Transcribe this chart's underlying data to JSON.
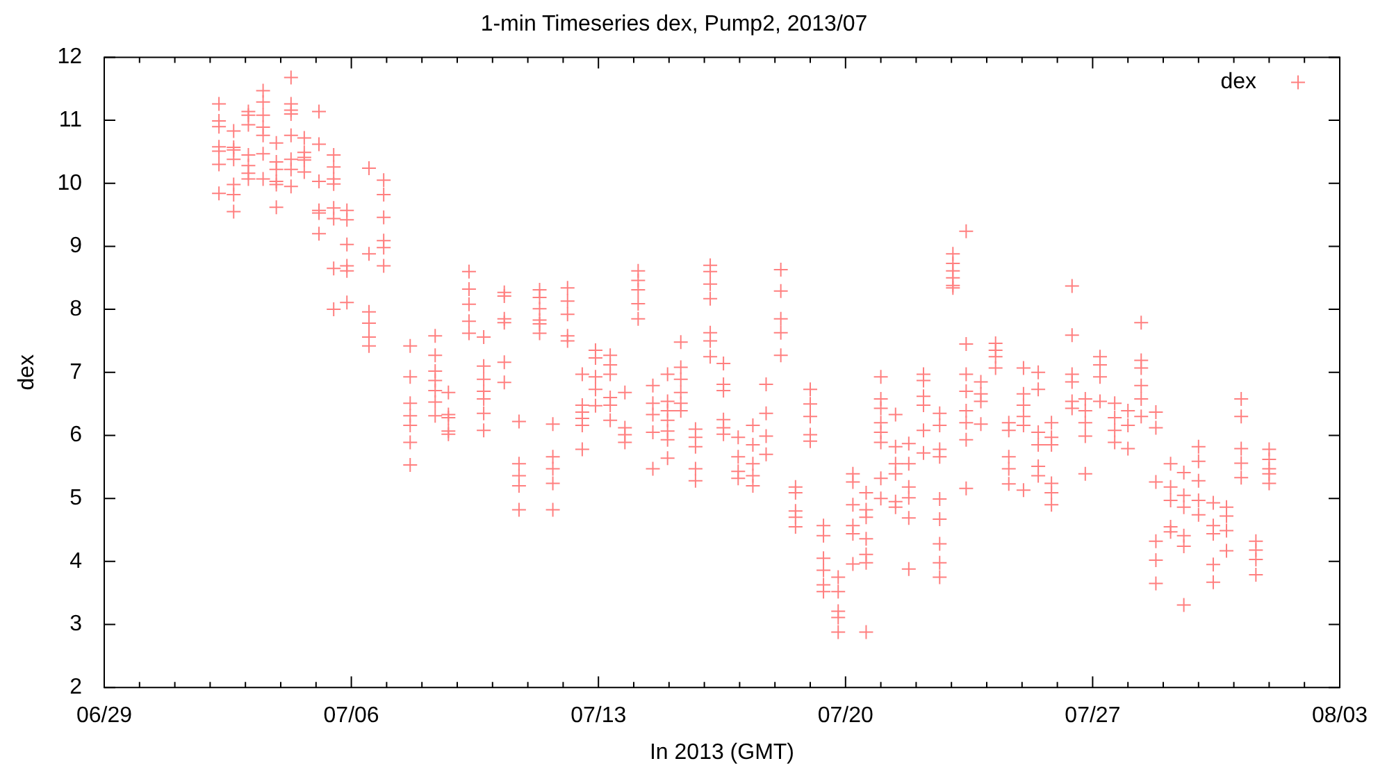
{
  "chart_data": {
    "type": "scatter",
    "title": "1-min Timeseries dex, Pump2, 2013/07",
    "xlabel": "In 2013 (GMT)",
    "ylabel": "dex",
    "xlim": [
      "2013-06-29",
      "2013-08-03"
    ],
    "xticks": [
      {
        "value": "2013-06-29",
        "label": "06/29"
      },
      {
        "value": "2013-06-30",
        "label": null
      },
      {
        "value": "2013-07-01",
        "label": null
      },
      {
        "value": "2013-07-02",
        "label": null
      },
      {
        "value": "2013-07-03",
        "label": null
      },
      {
        "value": "2013-07-04",
        "label": null
      },
      {
        "value": "2013-07-05",
        "label": null
      },
      {
        "value": "2013-07-06",
        "label": "07/06"
      },
      {
        "value": "2013-07-07",
        "label": null
      },
      {
        "value": "2013-07-08",
        "label": null
      },
      {
        "value": "2013-07-09",
        "label": null
      },
      {
        "value": "2013-07-10",
        "label": null
      },
      {
        "value": "2013-07-11",
        "label": null
      },
      {
        "value": "2013-07-12",
        "label": null
      },
      {
        "value": "2013-07-13",
        "label": "07/13"
      },
      {
        "value": "2013-07-14",
        "label": null
      },
      {
        "value": "2013-07-15",
        "label": null
      },
      {
        "value": "2013-07-16",
        "label": null
      },
      {
        "value": "2013-07-17",
        "label": null
      },
      {
        "value": "2013-07-18",
        "label": null
      },
      {
        "value": "2013-07-19",
        "label": null
      },
      {
        "value": "2013-07-20",
        "label": "07/20"
      },
      {
        "value": "2013-07-21",
        "label": null
      },
      {
        "value": "2013-07-22",
        "label": null
      },
      {
        "value": "2013-07-23",
        "label": null
      },
      {
        "value": "2013-07-24",
        "label": null
      },
      {
        "value": "2013-07-25",
        "label": null
      },
      {
        "value": "2013-07-26",
        "label": null
      },
      {
        "value": "2013-07-27",
        "label": "07/27"
      },
      {
        "value": "2013-07-28",
        "label": null
      },
      {
        "value": "2013-07-29",
        "label": null
      },
      {
        "value": "2013-07-30",
        "label": null
      },
      {
        "value": "2013-07-31",
        "label": null
      },
      {
        "value": "2013-08-01",
        "label": null
      },
      {
        "value": "2013-08-02",
        "label": null
      },
      {
        "value": "2013-08-03",
        "label": "08/03"
      }
    ],
    "ylim": [
      2,
      12
    ],
    "yticks": [
      2,
      3,
      4,
      5,
      6,
      7,
      8,
      9,
      10,
      11,
      12
    ],
    "legend": "top right",
    "marker": "cross",
    "series": [
      {
        "name": "dex",
        "color": "#ff7f7f",
        "x": [
          "2013-07-02T06:00",
          "2013-07-02T06:00",
          "2013-07-02T06:00",
          "2013-07-02T06:00",
          "2013-07-02T06:00",
          "2013-07-02T06:00",
          "2013-07-02T06:00",
          "2013-07-02T16:00",
          "2013-07-02T16:00",
          "2013-07-02T16:00",
          "2013-07-02T16:00",
          "2013-07-02T16:00",
          "2013-07-02T16:00",
          "2013-07-02T16:00",
          "2013-07-03T02:00",
          "2013-07-03T02:00",
          "2013-07-03T02:00",
          "2013-07-03T02:00",
          "2013-07-03T02:00",
          "2013-07-03T02:00",
          "2013-07-03T02:00",
          "2013-07-03T12:00",
          "2013-07-03T12:00",
          "2013-07-03T12:00",
          "2013-07-03T12:00",
          "2013-07-03T12:00",
          "2013-07-03T12:00",
          "2013-07-03T12:00",
          "2013-07-03T21:00",
          "2013-07-03T21:00",
          "2013-07-03T21:00",
          "2013-07-03T21:00",
          "2013-07-03T21:00",
          "2013-07-03T21:00",
          "2013-07-04T07:00",
          "2013-07-04T07:00",
          "2013-07-04T07:00",
          "2013-07-04T07:00",
          "2013-07-04T07:00",
          "2013-07-04T07:00",
          "2013-07-04T07:00",
          "2013-07-04T07:00",
          "2013-07-04T16:00",
          "2013-07-04T16:00",
          "2013-07-04T16:00",
          "2013-07-04T16:00",
          "2013-07-04T16:00",
          "2013-07-05T02:00",
          "2013-07-05T02:00",
          "2013-07-05T02:00",
          "2013-07-05T02:00",
          "2013-07-05T02:00",
          "2013-07-05T02:00",
          "2013-07-05T12:00",
          "2013-07-05T12:00",
          "2013-07-05T12:00",
          "2013-07-05T12:00",
          "2013-07-05T12:00",
          "2013-07-05T12:00",
          "2013-07-05T12:00",
          "2013-07-05T12:00",
          "2013-07-05T21:00",
          "2013-07-05T21:00",
          "2013-07-05T21:00",
          "2013-07-05T21:00",
          "2013-07-05T21:00",
          "2013-07-05T21:00",
          "2013-07-06T12:00",
          "2013-07-06T12:00",
          "2013-07-06T12:00",
          "2013-07-06T12:00",
          "2013-07-06T12:00",
          "2013-07-06T12:00",
          "2013-07-06T22:00",
          "2013-07-06T22:00",
          "2013-07-06T22:00",
          "2013-07-06T22:00",
          "2013-07-06T22:00",
          "2013-07-06T22:00",
          "2013-07-07T16:00",
          "2013-07-07T16:00",
          "2013-07-07T16:00",
          "2013-07-07T16:00",
          "2013-07-07T16:00",
          "2013-07-07T16:00",
          "2013-07-07T16:00",
          "2013-07-08T09:00",
          "2013-07-08T09:00",
          "2013-07-08T09:00",
          "2013-07-08T09:00",
          "2013-07-08T09:00",
          "2013-07-08T09:00",
          "2013-07-08T09:00",
          "2013-07-08T18:00",
          "2013-07-08T18:00",
          "2013-07-08T18:00",
          "2013-07-08T18:00",
          "2013-07-08T18:00",
          "2013-07-09T08:00",
          "2013-07-09T08:00",
          "2013-07-09T08:00",
          "2013-07-09T08:00",
          "2013-07-09T08:00",
          "2013-07-09T18:00",
          "2013-07-09T18:00",
          "2013-07-09T18:00",
          "2013-07-09T18:00",
          "2013-07-09T18:00",
          "2013-07-09T18:00",
          "2013-07-09T18:00",
          "2013-07-10T08:00",
          "2013-07-10T08:00",
          "2013-07-10T08:00",
          "2013-07-10T08:00",
          "2013-07-10T08:00",
          "2013-07-10T08:00",
          "2013-07-10T18:00",
          "2013-07-10T18:00",
          "2013-07-10T18:00",
          "2013-07-10T18:00",
          "2013-07-10T18:00",
          "2013-07-11T08:00",
          "2013-07-11T08:00",
          "2013-07-11T08:00",
          "2013-07-11T08:00",
          "2013-07-11T08:00",
          "2013-07-11T08:00",
          "2013-07-11T17:00",
          "2013-07-11T17:00",
          "2013-07-11T17:00",
          "2013-07-11T17:00",
          "2013-07-11T17:00",
          "2013-07-12T03:00",
          "2013-07-12T03:00",
          "2013-07-12T03:00",
          "2013-07-12T03:00",
          "2013-07-12T03:00",
          "2013-07-12T13:00",
          "2013-07-12T13:00",
          "2013-07-12T13:00",
          "2013-07-12T13:00",
          "2013-07-12T13:00",
          "2013-07-12T13:00",
          "2013-07-12T22:00",
          "2013-07-12T22:00",
          "2013-07-12T22:00",
          "2013-07-12T22:00",
          "2013-07-12T22:00",
          "2013-07-13T08:00",
          "2013-07-13T08:00",
          "2013-07-13T08:00",
          "2013-07-13T08:00",
          "2013-07-13T08:00",
          "2013-07-13T08:00",
          "2013-07-13T18:00",
          "2013-07-13T18:00",
          "2013-07-13T18:00",
          "2013-07-13T18:00",
          "2013-07-14T03:00",
          "2013-07-14T03:00",
          "2013-07-14T03:00",
          "2013-07-14T03:00",
          "2013-07-14T03:00",
          "2013-07-14T13:00",
          "2013-07-14T13:00",
          "2013-07-14T13:00",
          "2013-07-14T13:00",
          "2013-07-14T13:00",
          "2013-07-14T23:00",
          "2013-07-14T23:00",
          "2013-07-14T23:00",
          "2013-07-14T23:00",
          "2013-07-14T23:00",
          "2013-07-14T23:00",
          "2013-07-14T23:00",
          "2013-07-15T08:00",
          "2013-07-15T08:00",
          "2013-07-15T08:00",
          "2013-07-15T08:00",
          "2013-07-15T08:00",
          "2013-07-15T08:00",
          "2013-07-15T18:00",
          "2013-07-15T18:00",
          "2013-07-15T18:00",
          "2013-07-15T18:00",
          "2013-07-15T18:00",
          "2013-07-16T04:00",
          "2013-07-16T04:00",
          "2013-07-16T04:00",
          "2013-07-16T04:00",
          "2013-07-16T04:00",
          "2013-07-16T04:00",
          "2013-07-16T04:00",
          "2013-07-16T13:00",
          "2013-07-16T13:00",
          "2013-07-16T13:00",
          "2013-07-16T13:00",
          "2013-07-16T13:00",
          "2013-07-16T13:00",
          "2013-07-16T23:00",
          "2013-07-16T23:00",
          "2013-07-16T23:00",
          "2013-07-16T23:00",
          "2013-07-17T09:00",
          "2013-07-17T09:00",
          "2013-07-17T09:00",
          "2013-07-17T09:00",
          "2013-07-17T09:00",
          "2013-07-17T18:00",
          "2013-07-17T18:00",
          "2013-07-17T18:00",
          "2013-07-17T18:00",
          "2013-07-18T04:00",
          "2013-07-18T04:00",
          "2013-07-18T04:00",
          "2013-07-18T04:00",
          "2013-07-18T04:00",
          "2013-07-18T14:00",
          "2013-07-18T14:00",
          "2013-07-18T14:00",
          "2013-07-18T14:00",
          "2013-07-18T14:00",
          "2013-07-19T00:00",
          "2013-07-19T00:00",
          "2013-07-19T00:00",
          "2013-07-19T00:00",
          "2013-07-19T00:00",
          "2013-07-19T09:00",
          "2013-07-19T09:00",
          "2013-07-19T09:00",
          "2013-07-19T09:00",
          "2013-07-19T09:00",
          "2013-07-19T09:00",
          "2013-07-19T19:00",
          "2013-07-19T19:00",
          "2013-07-19T19:00",
          "2013-07-19T19:00",
          "2013-07-19T19:00",
          "2013-07-20T05:00",
          "2013-07-20T05:00",
          "2013-07-20T05:00",
          "2013-07-20T05:00",
          "2013-07-20T05:00",
          "2013-07-20T05:00",
          "2013-07-20T14:00",
          "2013-07-20T14:00",
          "2013-07-20T14:00",
          "2013-07-20T14:00",
          "2013-07-20T14:00",
          "2013-07-20T14:00",
          "2013-07-20T14:00",
          "2013-07-21T00:00",
          "2013-07-21T00:00",
          "2013-07-21T00:00",
          "2013-07-21T00:00",
          "2013-07-21T00:00",
          "2013-07-21T00:00",
          "2013-07-21T00:00",
          "2013-07-21T00:00",
          "2013-07-21T10:00",
          "2013-07-21T10:00",
          "2013-07-21T10:00",
          "2013-07-21T10:00",
          "2013-07-21T10:00",
          "2013-07-21T10:00",
          "2013-07-21T19:00",
          "2013-07-21T19:00",
          "2013-07-21T19:00",
          "2013-07-21T19:00",
          "2013-07-21T19:00",
          "2013-07-21T19:00",
          "2013-07-22T05:00",
          "2013-07-22T05:00",
          "2013-07-22T05:00",
          "2013-07-22T05:00",
          "2013-07-22T05:00",
          "2013-07-22T05:00",
          "2013-07-22T16:00",
          "2013-07-22T16:00",
          "2013-07-22T16:00",
          "2013-07-22T16:00",
          "2013-07-22T16:00",
          "2013-07-22T16:00",
          "2013-07-22T16:00",
          "2013-07-22T16:00",
          "2013-07-22T16:00",
          "2013-07-23T01:00",
          "2013-07-23T01:00",
          "2013-07-23T01:00",
          "2013-07-23T01:00",
          "2013-07-23T01:00",
          "2013-07-23T01:00",
          "2013-07-23T10:00",
          "2013-07-23T10:00",
          "2013-07-23T10:00",
          "2013-07-23T10:00",
          "2013-07-23T10:00",
          "2013-07-23T10:00",
          "2013-07-23T10:00",
          "2013-07-23T10:00",
          "2013-07-23T20:00",
          "2013-07-23T20:00",
          "2013-07-23T20:00",
          "2013-07-23T20:00",
          "2013-07-24T06:00",
          "2013-07-24T06:00",
          "2013-07-24T06:00",
          "2013-07-24T06:00",
          "2013-07-24T15:00",
          "2013-07-24T15:00",
          "2013-07-24T15:00",
          "2013-07-24T15:00",
          "2013-07-24T15:00",
          "2013-07-25T01:00",
          "2013-07-25T01:00",
          "2013-07-25T01:00",
          "2013-07-25T01:00",
          "2013-07-25T01:00",
          "2013-07-25T01:00",
          "2013-07-25T11:00",
          "2013-07-25T11:00",
          "2013-07-25T11:00",
          "2013-07-25T11:00",
          "2013-07-25T11:00",
          "2013-07-25T11:00",
          "2013-07-25T20:00",
          "2013-07-25T20:00",
          "2013-07-25T20:00",
          "2013-07-25T20:00",
          "2013-07-25T20:00",
          "2013-07-25T20:00",
          "2013-07-26T10:00",
          "2013-07-26T10:00",
          "2013-07-26T10:00",
          "2013-07-26T10:00",
          "2013-07-26T10:00",
          "2013-07-26T10:00",
          "2013-07-26T19:00",
          "2013-07-26T19:00",
          "2013-07-26T19:00",
          "2013-07-26T19:00",
          "2013-07-26T19:00",
          "2013-07-27T05:00",
          "2013-07-27T05:00",
          "2013-07-27T05:00",
          "2013-07-27T05:00",
          "2013-07-27T15:00",
          "2013-07-27T15:00",
          "2013-07-27T15:00",
          "2013-07-27T15:00",
          "2013-07-28T00:00",
          "2013-07-28T00:00",
          "2013-07-28T00:00",
          "2013-07-28T09:00",
          "2013-07-28T09:00",
          "2013-07-28T09:00",
          "2013-07-28T09:00",
          "2013-07-28T09:00",
          "2013-07-28T09:00",
          "2013-07-28T19:00",
          "2013-07-28T19:00",
          "2013-07-28T19:00",
          "2013-07-28T19:00",
          "2013-07-28T19:00",
          "2013-07-28T19:00",
          "2013-07-29T05:00",
          "2013-07-29T05:00",
          "2013-07-29T05:00",
          "2013-07-29T05:00",
          "2013-07-29T05:00",
          "2013-07-29T14:00",
          "2013-07-29T14:00",
          "2013-07-29T14:00",
          "2013-07-29T14:00",
          "2013-07-29T14:00",
          "2013-07-29T14:00",
          "2013-07-30T00:00",
          "2013-07-30T00:00",
          "2013-07-30T00:00",
          "2013-07-30T00:00",
          "2013-07-30T00:00",
          "2013-07-30T10:00",
          "2013-07-30T10:00",
          "2013-07-30T10:00",
          "2013-07-30T10:00",
          "2013-07-30T10:00",
          "2013-07-30T19:00",
          "2013-07-30T19:00",
          "2013-07-30T19:00",
          "2013-07-30T19:00",
          "2013-07-31T05:00",
          "2013-07-31T05:00",
          "2013-07-31T05:00",
          "2013-07-31T05:00",
          "2013-07-31T05:00",
          "2013-07-31T15:00",
          "2013-07-31T15:00",
          "2013-07-31T15:00",
          "2013-07-31T15:00",
          "2013-08-01T00:00",
          "2013-08-01T00:00",
          "2013-08-01T00:00",
          "2013-08-01T00:00",
          "2013-08-01T00:00"
        ],
        "values": [
          11.26,
          10.99,
          10.9,
          10.58,
          10.51,
          10.3,
          9.84,
          10.83,
          10.57,
          10.53,
          10.38,
          9.98,
          9.82,
          9.55,
          11.14,
          11.08,
          10.93,
          10.45,
          10.28,
          10.16,
          10.07,
          11.47,
          11.29,
          11.08,
          10.89,
          10.76,
          10.47,
          10.07,
          10.64,
          10.34,
          10.22,
          10.03,
          9.98,
          9.62,
          11.68,
          11.26,
          11.16,
          11.1,
          10.76,
          10.38,
          10.22,
          9.95,
          10.72,
          10.49,
          10.41,
          10.37,
          10.18,
          11.14,
          10.62,
          10.03,
          9.57,
          9.53,
          9.2,
          10.45,
          10.26,
          10.07,
          9.99,
          9.61,
          9.44,
          8.65,
          8.0,
          9.57,
          9.42,
          9.03,
          8.69,
          8.61,
          8.11,
          10.24,
          8.88,
          7.96,
          7.78,
          7.56,
          7.42,
          10.05,
          9.82,
          9.46,
          9.09,
          8.98,
          8.69,
          7.42,
          6.93,
          6.51,
          6.31,
          6.16,
          5.89,
          5.53,
          7.58,
          7.27,
          7.02,
          6.87,
          6.71,
          6.53,
          6.31,
          6.68,
          6.33,
          6.28,
          6.07,
          6.02,
          8.6,
          8.32,
          8.08,
          7.81,
          7.62,
          7.56,
          7.1,
          6.89,
          6.7,
          6.58,
          6.35,
          6.08,
          8.27,
          8.21,
          7.85,
          7.79,
          7.16,
          6.84,
          6.22,
          5.55,
          5.36,
          5.2,
          4.82,
          8.31,
          8.19,
          8.01,
          7.83,
          7.77,
          7.62,
          6.18,
          5.66,
          5.47,
          5.24,
          4.82,
          8.34,
          8.13,
          7.92,
          7.58,
          7.5,
          6.97,
          6.48,
          6.37,
          6.27,
          6.16,
          5.78,
          7.35,
          7.23,
          6.93,
          6.73,
          6.47,
          7.27,
          7.12,
          6.97,
          6.6,
          6.48,
          6.24,
          6.68,
          6.12,
          6.01,
          5.89,
          8.61,
          8.46,
          8.31,
          8.09,
          7.85,
          6.79,
          6.51,
          6.33,
          6.05,
          5.47,
          6.97,
          6.54,
          6.39,
          6.24,
          6.07,
          5.93,
          5.64,
          7.48,
          7.08,
          6.89,
          6.68,
          6.51,
          6.39,
          6.1,
          5.97,
          5.82,
          5.47,
          5.28,
          8.7,
          8.6,
          8.4,
          8.17,
          7.63,
          7.5,
          7.25,
          7.14,
          6.81,
          6.71,
          6.25,
          6.12,
          6.02,
          5.97,
          5.66,
          5.43,
          5.32,
          6.16,
          5.85,
          5.55,
          5.36,
          5.2,
          6.81,
          6.35,
          5.99,
          5.7,
          8.63,
          8.29,
          7.85,
          7.63,
          7.27,
          5.18,
          5.09,
          4.8,
          4.7,
          4.55,
          6.73,
          6.5,
          6.3,
          6.01,
          5.91,
          4.57,
          4.41,
          4.05,
          3.86,
          3.63,
          3.52,
          3.75,
          3.52,
          3.21,
          3.11,
          2.88,
          5.39,
          5.26,
          4.9,
          4.57,
          4.44,
          3.96,
          5.09,
          4.82,
          4.7,
          4.36,
          4.11,
          3.98,
          2.88,
          6.93,
          6.58,
          6.43,
          6.2,
          6.05,
          5.89,
          5.32,
          5.0,
          6.33,
          5.82,
          5.55,
          5.39,
          4.95,
          4.86,
          5.87,
          5.55,
          5.18,
          5.01,
          4.69,
          3.88,
          6.97,
          6.87,
          6.62,
          6.48,
          6.08,
          5.72,
          6.35,
          6.16,
          5.78,
          5.66,
          4.99,
          4.67,
          4.28,
          3.98,
          3.75,
          8.88,
          8.73,
          8.61,
          8.5,
          8.38,
          8.34,
          9.24,
          7.45,
          6.97,
          6.7,
          6.39,
          6.2,
          5.93,
          5.16,
          6.85,
          6.66,
          6.54,
          6.18,
          7.46,
          7.35,
          7.25,
          7.07,
          6.2,
          6.08,
          5.66,
          5.47,
          5.23,
          7.07,
          6.66,
          6.48,
          6.3,
          6.16,
          5.13,
          7.0,
          6.73,
          6.05,
          5.85,
          5.51,
          5.36,
          6.2,
          5.97,
          5.85,
          5.24,
          5.09,
          4.9,
          8.37,
          7.59,
          6.97,
          6.85,
          6.54,
          6.43,
          6.58,
          6.39,
          6.2,
          5.99,
          5.39,
          7.25,
          7.12,
          6.93,
          6.54,
          6.51,
          6.28,
          6.08,
          5.89,
          6.39,
          6.16,
          5.79,
          7.79,
          7.19,
          7.07,
          6.79,
          6.58,
          6.3,
          6.37,
          6.12,
          5.26,
          4.32,
          4.02,
          3.65,
          5.55,
          5.18,
          4.97,
          4.55,
          4.47,
          5.41,
          5.05,
          4.86,
          4.41,
          4.24,
          3.31,
          5.82,
          5.59,
          5.28,
          4.97,
          4.74,
          4.93,
          4.57,
          4.44,
          3.95,
          3.67,
          4.86,
          4.72,
          4.49,
          4.17,
          6.58,
          6.3,
          5.79,
          5.56,
          5.33,
          4.32,
          4.18,
          4.03,
          3.79,
          5.78,
          5.62,
          5.47,
          5.39,
          5.24
        ]
      }
    ]
  }
}
